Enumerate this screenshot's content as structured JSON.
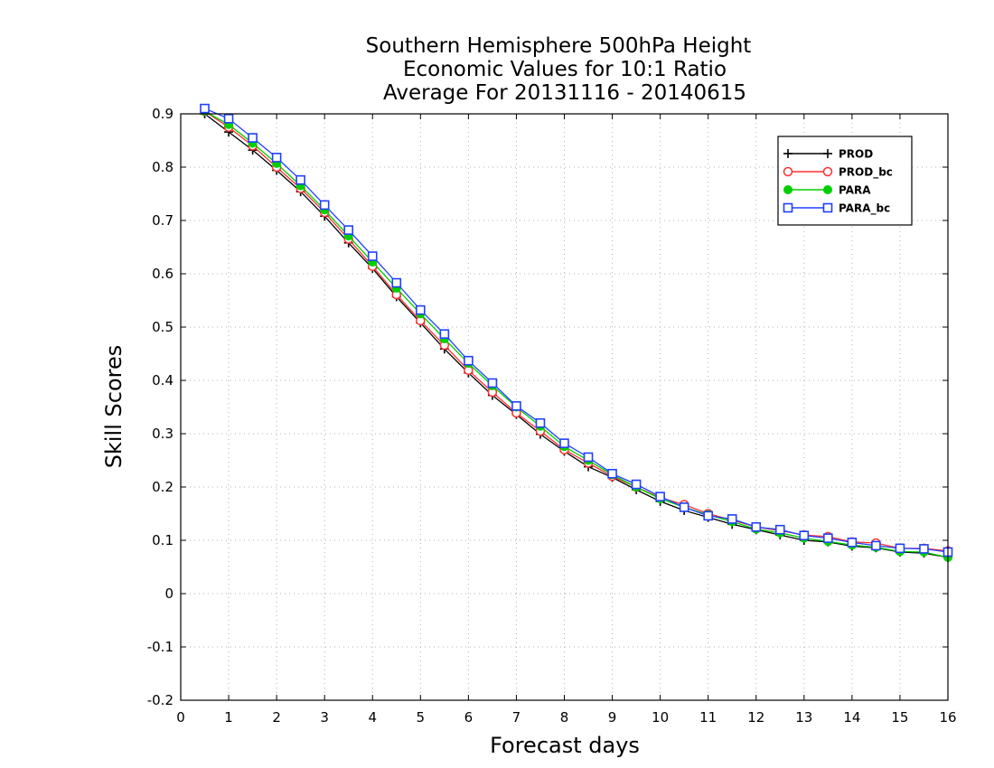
{
  "chart_data": {
    "type": "line",
    "title": [
      "Southern Hemisphere 500hPa Height",
      "Economic Values for 10:1 Ratio",
      "Average For 20131116 - 20140615"
    ],
    "xlabel": "Forecast days",
    "ylabel": "Skill Scores",
    "xlim": [
      0,
      16
    ],
    "ylim": [
      -0.2,
      0.9
    ],
    "xticks": [
      0,
      1,
      2,
      3,
      4,
      5,
      6,
      7,
      8,
      9,
      10,
      11,
      12,
      13,
      14,
      15,
      16
    ],
    "yticks": [
      -0.2,
      -0.1,
      0,
      0.1,
      0.2,
      0.3,
      0.4,
      0.5,
      0.6,
      0.7,
      0.8,
      0.9
    ],
    "grid": true,
    "legend_position": "top-right",
    "x": [
      0.5,
      1,
      1.5,
      2,
      2.5,
      3,
      3.5,
      4,
      4.5,
      5,
      5.5,
      6,
      6.5,
      7,
      7.5,
      8,
      8.5,
      9,
      9.5,
      10,
      10.5,
      11,
      11.5,
      12,
      12.5,
      13,
      13.5,
      14,
      14.5,
      15,
      15.5,
      16
    ],
    "series": [
      {
        "name": "PROD",
        "color": "#000000",
        "marker": "plus",
        "values": [
          0.9,
          0.866,
          0.832,
          0.794,
          0.754,
          0.708,
          0.658,
          0.61,
          0.557,
          0.508,
          0.459,
          0.414,
          0.372,
          0.336,
          0.299,
          0.267,
          0.238,
          0.218,
          0.195,
          0.173,
          0.156,
          0.143,
          0.13,
          0.12,
          0.11,
          0.1,
          0.097,
          0.089,
          0.086,
          0.078,
          0.076,
          0.068
        ]
      },
      {
        "name": "PROD_bc",
        "color": "#ff3030",
        "marker": "circle",
        "values": [
          0.905,
          0.875,
          0.84,
          0.8,
          0.76,
          0.715,
          0.665,
          0.614,
          0.561,
          0.512,
          0.466,
          0.419,
          0.378,
          0.339,
          0.305,
          0.27,
          0.245,
          0.22,
          0.2,
          0.18,
          0.167,
          0.15,
          0.138,
          0.125,
          0.118,
          0.11,
          0.107,
          0.097,
          0.095,
          0.085,
          0.085,
          0.08
        ]
      },
      {
        "name": "PARA",
        "color": "#00d000",
        "marker": "filled-circle",
        "values": [
          0.905,
          0.88,
          0.845,
          0.807,
          0.765,
          0.72,
          0.671,
          0.622,
          0.573,
          0.525,
          0.478,
          0.432,
          0.39,
          0.35,
          0.314,
          0.276,
          0.25,
          0.223,
          0.2,
          0.178,
          0.162,
          0.148,
          0.135,
          0.121,
          0.114,
          0.104,
          0.098,
          0.091,
          0.087,
          0.079,
          0.078,
          0.068
        ]
      },
      {
        "name": "PARA_bc",
        "color": "#2040ff",
        "marker": "square",
        "values": [
          0.91,
          0.891,
          0.855,
          0.818,
          0.776,
          0.729,
          0.682,
          0.633,
          0.583,
          0.532,
          0.487,
          0.437,
          0.395,
          0.352,
          0.32,
          0.282,
          0.256,
          0.225,
          0.205,
          0.182,
          0.162,
          0.146,
          0.14,
          0.125,
          0.12,
          0.109,
          0.104,
          0.096,
          0.09,
          0.085,
          0.084,
          0.078
        ]
      }
    ]
  }
}
